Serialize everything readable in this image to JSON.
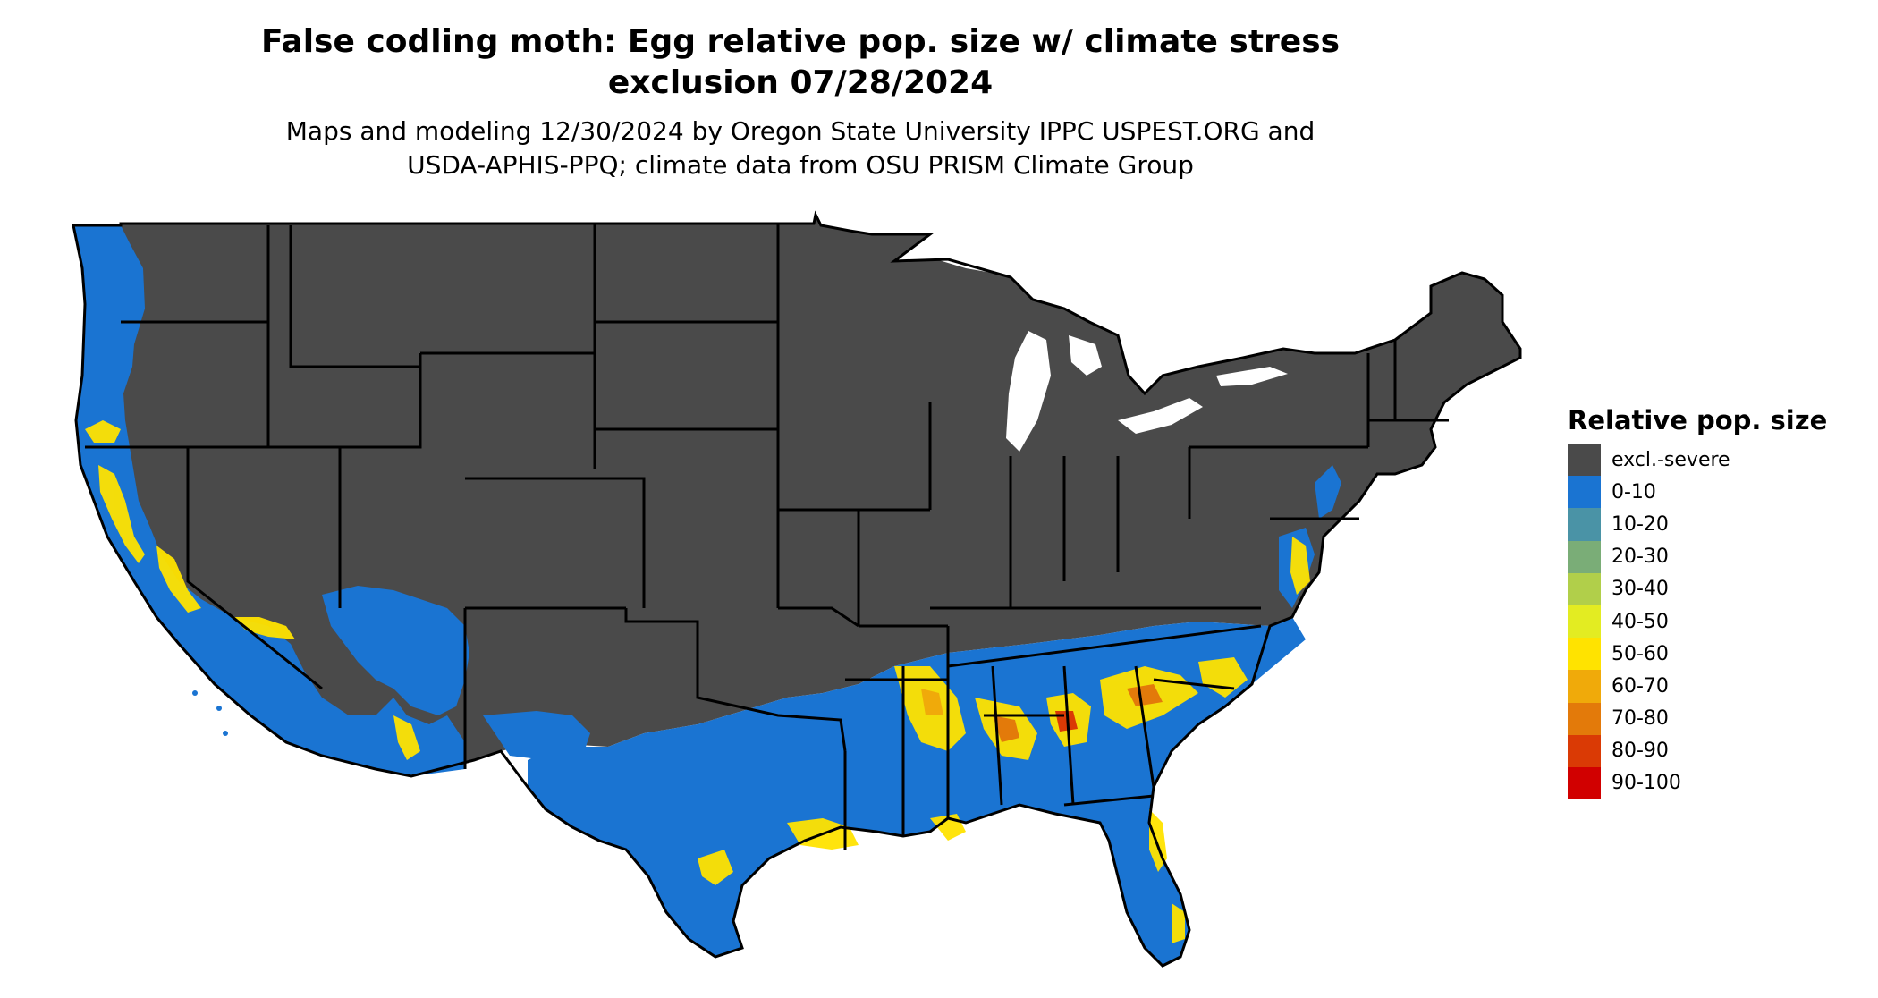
{
  "title_line1": "False codling moth: Egg relative pop. size w/ climate stress",
  "title_line2": "exclusion 07/28/2024",
  "subtitle_line1": "Maps and modeling 12/30/2024 by Oregon State University IPPC USPEST.ORG and",
  "subtitle_line2": "USDA-APHIS-PPQ; climate data from OSU PRISM Climate Group",
  "legend": {
    "title": "Relative pop. size",
    "items": [
      {
        "label": "excl.-severe",
        "color": "#4a4a4a"
      },
      {
        "label": "0-10",
        "color": "#1a74d2"
      },
      {
        "label": "10-20",
        "color": "#4a93a6"
      },
      {
        "label": "20-30",
        "color": "#7aad77"
      },
      {
        "label": "30-40",
        "color": "#b1cf4a"
      },
      {
        "label": "40-50",
        "color": "#e3ec22"
      },
      {
        "label": "50-60",
        "color": "#ffe300"
      },
      {
        "label": "60-70",
        "color": "#f0aa0a"
      },
      {
        "label": "70-80",
        "color": "#e37a0a"
      },
      {
        "label": "80-90",
        "color": "#da3a05"
      },
      {
        "label": "90-100",
        "color": "#d10000"
      }
    ]
  }
}
